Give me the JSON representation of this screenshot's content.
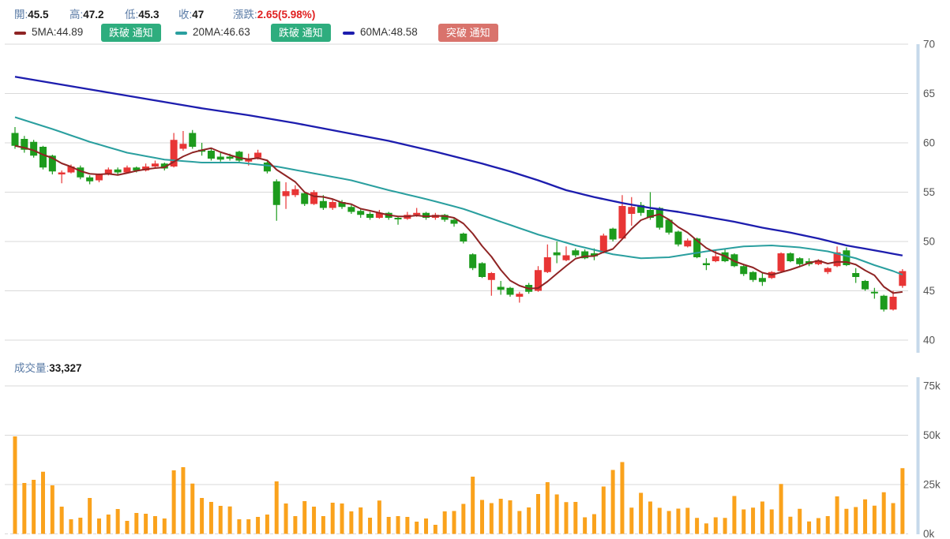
{
  "header": {
    "fields": [
      {
        "label": "開:",
        "value": "45.5"
      },
      {
        "label": "高:",
        "value": "47.2"
      },
      {
        "label": "低:",
        "value": "45.3"
      },
      {
        "label": "收:",
        "value": "47"
      },
      {
        "label": "漲跌:",
        "value": "2.65(5.98%)"
      }
    ]
  },
  "legend": {
    "items": [
      {
        "label": "5MA:44.89",
        "swatch_style": "background:#8f2424",
        "button": "跌破 通知",
        "button_class": "btn btn-green"
      },
      {
        "label": "20MA:46.63",
        "swatch_style": "background:#2a9f9f",
        "button": "跌破 通知",
        "button_class": "btn btn-green"
      },
      {
        "label": "60MA:48.58",
        "swatch_style": "background:#1d1dae",
        "button": "突破 通知",
        "button_class": "btn btn-red"
      }
    ]
  },
  "volume_section": {
    "label": "成交量:",
    "value": "33,327"
  },
  "colors": {
    "up": "#e83535",
    "down": "#1d9b1d",
    "ma5": "#8f2424",
    "ma20": "#2a9f9f",
    "ma60": "#1d1dae",
    "volume_bar": "#faa21c",
    "grid": "#d9d9d9",
    "axis_band": "#c6d9ea",
    "axis_text": "#555555",
    "label_blue": "#5a7ba6",
    "change_red": "#e02020"
  },
  "chart_data": {
    "type": "candlestick",
    "x_count": 96,
    "grid": true,
    "legend_position": "top",
    "price_pane": {
      "ylim": [
        40,
        70
      ],
      "yticks": [
        70,
        65,
        60,
        55,
        50,
        45,
        40
      ],
      "ohlc": [
        [
          61.0,
          61.6,
          59.4,
          59.7
        ],
        [
          60.4,
          60.7,
          59.0,
          59.3
        ],
        [
          60.1,
          60.3,
          58.5,
          58.7
        ],
        [
          59.6,
          59.7,
          57.3,
          57.5
        ],
        [
          58.7,
          58.8,
          56.8,
          57.1
        ],
        [
          56.8,
          57.2,
          55.9,
          57.0
        ],
        [
          57.0,
          57.8,
          56.9,
          57.6
        ],
        [
          57.5,
          57.7,
          56.3,
          56.5
        ],
        [
          56.5,
          56.7,
          55.8,
          56.1
        ],
        [
          56.2,
          56.9,
          56.0,
          56.8
        ],
        [
          56.8,
          57.5,
          56.7,
          57.3
        ],
        [
          57.3,
          57.5,
          56.8,
          57.0
        ],
        [
          57.0,
          57.7,
          56.9,
          57.5
        ],
        [
          57.5,
          57.6,
          57.0,
          57.2
        ],
        [
          57.2,
          57.9,
          57.1,
          57.6
        ],
        [
          57.6,
          58.2,
          57.4,
          57.9
        ],
        [
          57.9,
          58.0,
          57.2,
          57.4
        ],
        [
          57.6,
          61.0,
          57.5,
          60.3
        ],
        [
          59.4,
          61.2,
          59.2,
          59.9
        ],
        [
          61.0,
          61.3,
          59.4,
          59.6
        ],
        [
          59.3,
          60.0,
          58.7,
          59.1
        ],
        [
          59.2,
          59.4,
          58.2,
          58.4
        ],
        [
          58.6,
          59.0,
          58.1,
          58.3
        ],
        [
          58.6,
          58.9,
          58.2,
          58.4
        ],
        [
          59.1,
          59.2,
          58.0,
          58.2
        ],
        [
          58.1,
          58.9,
          57.7,
          58.4
        ],
        [
          58.5,
          59.3,
          58.3,
          59.0
        ],
        [
          58.0,
          58.2,
          56.9,
          57.1
        ],
        [
          56.1,
          56.3,
          52.1,
          53.7
        ],
        [
          54.6,
          56.0,
          53.3,
          55.1
        ],
        [
          54.7,
          55.7,
          54.5,
          55.3
        ],
        [
          54.9,
          55.0,
          53.6,
          53.8
        ],
        [
          53.8,
          55.2,
          53.7,
          55.0
        ],
        [
          54.1,
          54.7,
          53.2,
          53.4
        ],
        [
          53.4,
          54.3,
          53.2,
          54.0
        ],
        [
          54.0,
          54.2,
          53.3,
          53.5
        ],
        [
          53.5,
          53.7,
          52.8,
          53.0
        ],
        [
          53.1,
          53.3,
          52.4,
          52.7
        ],
        [
          52.8,
          53.0,
          52.2,
          52.4
        ],
        [
          52.4,
          53.2,
          52.3,
          52.9
        ],
        [
          52.9,
          53.0,
          52.2,
          52.4
        ],
        [
          52.4,
          52.6,
          51.7,
          52.3
        ],
        [
          52.3,
          53.0,
          52.2,
          52.7
        ],
        [
          52.7,
          53.4,
          52.5,
          52.9
        ],
        [
          52.9,
          53.0,
          52.2,
          52.4
        ],
        [
          52.4,
          52.9,
          52.2,
          52.7
        ],
        [
          52.7,
          52.8,
          52.0,
          52.2
        ],
        [
          52.2,
          52.4,
          51.5,
          51.8
        ],
        [
          50.8,
          50.9,
          49.8,
          50.0
        ],
        [
          48.7,
          48.8,
          47.1,
          47.3
        ],
        [
          47.8,
          47.9,
          46.3,
          46.4
        ],
        [
          46.1,
          46.9,
          44.5,
          46.8
        ],
        [
          45.4,
          46.0,
          44.6,
          45.1
        ],
        [
          45.3,
          45.4,
          44.4,
          44.6
        ],
        [
          44.4,
          44.9,
          43.8,
          44.7
        ],
        [
          45.6,
          45.8,
          44.7,
          44.9
        ],
        [
          45.0,
          47.5,
          44.9,
          47.1
        ],
        [
          46.9,
          49.7,
          46.8,
          48.4
        ],
        [
          48.9,
          50.0,
          47.8,
          48.6
        ],
        [
          48.1,
          49.5,
          48.0,
          48.6
        ],
        [
          49.1,
          49.3,
          48.4,
          48.6
        ],
        [
          49.0,
          49.2,
          48.2,
          48.3
        ],
        [
          48.8,
          49.3,
          48.1,
          48.5
        ],
        [
          48.9,
          50.8,
          48.8,
          50.6
        ],
        [
          51.3,
          51.4,
          50.0,
          50.2
        ],
        [
          50.3,
          54.7,
          50.2,
          53.6
        ],
        [
          52.8,
          54.5,
          51.6,
          53.5
        ],
        [
          53.7,
          54.0,
          52.6,
          52.9
        ],
        [
          53.2,
          55.0,
          52.2,
          52.4
        ],
        [
          53.4,
          53.5,
          51.2,
          51.4
        ],
        [
          52.2,
          52.3,
          50.7,
          50.9
        ],
        [
          51.0,
          51.1,
          49.5,
          49.7
        ],
        [
          49.5,
          50.3,
          49.4,
          50.1
        ],
        [
          50.3,
          50.4,
          48.3,
          48.4
        ],
        [
          47.8,
          48.3,
          47.1,
          47.6
        ],
        [
          48.0,
          49.1,
          47.9,
          48.5
        ],
        [
          48.9,
          49.2,
          47.9,
          48.0
        ],
        [
          48.7,
          48.8,
          47.4,
          47.5
        ],
        [
          47.5,
          47.6,
          46.5,
          46.7
        ],
        [
          46.9,
          47.0,
          45.9,
          46.1
        ],
        [
          46.3,
          46.8,
          45.5,
          45.9
        ],
        [
          46.3,
          47.0,
          46.2,
          46.9
        ],
        [
          47.0,
          48.9,
          46.8,
          48.8
        ],
        [
          48.8,
          48.9,
          47.9,
          48.0
        ],
        [
          48.3,
          48.4,
          47.5,
          47.7
        ],
        [
          48.0,
          48.3,
          47.5,
          47.7
        ],
        [
          47.7,
          48.2,
          47.6,
          48.1
        ],
        [
          46.9,
          47.4,
          46.7,
          47.3
        ],
        [
          47.5,
          49.5,
          47.4,
          48.9
        ],
        [
          49.1,
          49.4,
          47.5,
          47.6
        ],
        [
          46.8,
          47.3,
          45.8,
          46.4
        ],
        [
          46.0,
          46.1,
          45.0,
          45.15
        ],
        [
          44.9,
          45.3,
          44.2,
          44.8
        ],
        [
          44.5,
          44.6,
          42.9,
          43.1
        ],
        [
          43.1,
          45.0,
          43.0,
          44.4
        ],
        [
          45.5,
          47.2,
          45.3,
          47.0
        ]
      ],
      "ma5_final": 44.89,
      "ma20": [
        62.6,
        62.3,
        62.0,
        61.7,
        61.4,
        61.08,
        60.75,
        60.43,
        60.1,
        59.83,
        59.55,
        59.28,
        59.0,
        58.83,
        58.65,
        58.48,
        58.3,
        58.23,
        58.15,
        58.08,
        58.0,
        58.0,
        58.0,
        58.0,
        58.0,
        57.9,
        57.8,
        57.7,
        57.6,
        57.43,
        57.25,
        57.08,
        56.9,
        56.73,
        56.55,
        56.38,
        56.2,
        55.95,
        55.7,
        55.45,
        55.2,
        54.98,
        54.75,
        54.53,
        54.3,
        54.06,
        53.81,
        53.56,
        53.3,
        52.98,
        52.65,
        52.33,
        52.0,
        51.68,
        51.35,
        51.03,
        50.7,
        50.43,
        50.15,
        49.88,
        49.6,
        49.38,
        49.15,
        48.93,
        48.7,
        48.57,
        48.43,
        48.3,
        48.33,
        48.37,
        48.4,
        48.55,
        48.7,
        48.85,
        49.0,
        49.13,
        49.25,
        49.38,
        49.5,
        49.53,
        49.57,
        49.6,
        49.53,
        49.47,
        49.4,
        49.27,
        49.13,
        49.0,
        48.77,
        48.53,
        48.3,
        47.95,
        47.6,
        47.3,
        47.0,
        46.63
      ],
      "ma60": [
        66.7,
        66.54,
        66.38,
        66.22,
        66.06,
        65.9,
        65.74,
        65.58,
        65.42,
        65.26,
        65.1,
        64.94,
        64.78,
        64.62,
        64.46,
        64.3,
        64.14,
        63.98,
        63.82,
        63.66,
        63.5,
        63.36,
        63.22,
        63.08,
        62.94,
        62.8,
        62.64,
        62.48,
        62.32,
        62.16,
        62.0,
        61.82,
        61.64,
        61.46,
        61.28,
        61.1,
        60.92,
        60.74,
        60.56,
        60.38,
        60.2,
        59.98,
        59.76,
        59.54,
        59.32,
        59.1,
        58.86,
        58.62,
        58.38,
        58.14,
        57.9,
        57.63,
        57.37,
        57.1,
        56.8,
        56.5,
        56.2,
        55.87,
        55.53,
        55.2,
        54.97,
        54.73,
        54.5,
        54.3,
        54.1,
        53.9,
        53.73,
        53.57,
        53.4,
        53.27,
        53.13,
        53.0,
        52.83,
        52.67,
        52.5,
        52.33,
        52.17,
        52.0,
        51.8,
        51.6,
        51.4,
        51.23,
        51.07,
        50.9,
        50.7,
        50.5,
        50.3,
        50.07,
        49.83,
        49.6,
        49.43,
        49.27,
        49.1,
        48.93,
        48.75,
        48.58
      ]
    },
    "volume_pane": {
      "ylim_k": [
        0,
        75
      ],
      "yticks": [
        "75k",
        "50k",
        "25k",
        "0k"
      ],
      "latest": 33327,
      "values_k": [
        49.4,
        25.8,
        27.4,
        31.5,
        24.6,
        13.8,
        7.4,
        8.2,
        18.2,
        7.8,
        9.8,
        12.6,
        6.6,
        10.6,
        10.2,
        9.0,
        7.8,
        32.2,
        33.8,
        25.5,
        18.2,
        16.2,
        14.2,
        13.9,
        7.4,
        7.4,
        8.6,
        9.8,
        26.6,
        15.4,
        9.0,
        16.6,
        13.8,
        9.0,
        15.8,
        15.4,
        11.4,
        13.4,
        8.2,
        16.9,
        8.6,
        9.0,
        8.6,
        6.2,
        7.8,
        4.6,
        11.4,
        11.6,
        15.2,
        29.0,
        17.2,
        15.6,
        17.8,
        17.0,
        11.6,
        13.4,
        20.2,
        26.2,
        20.0,
        16.1,
        16.2,
        8.4,
        10.0,
        24.0,
        32.4,
        36.4,
        13.3,
        20.8,
        16.4,
        13.2,
        11.6,
        12.8,
        13.2,
        8.1,
        5.3,
        8.4,
        8.1,
        19.2,
        12.4,
        13.3,
        16.4,
        12.4,
        25.3,
        8.7,
        12.7,
        6.3,
        8.0,
        9.0,
        19.0,
        12.7,
        13.6,
        17.5,
        14.3,
        21.1,
        15.6,
        33.3
      ]
    }
  }
}
